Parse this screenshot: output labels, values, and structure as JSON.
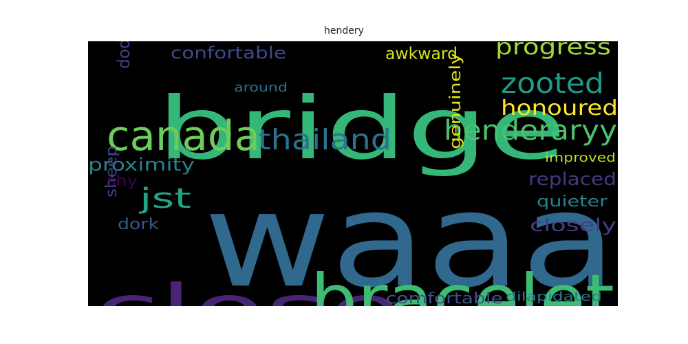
{
  "chart_data": {
    "type": "wordcloud",
    "title": "hendery",
    "background": "#000000",
    "words": [
      {
        "text": "waaa",
        "color": "#31688e"
      },
      {
        "text": "bridge",
        "color": "#35b779"
      },
      {
        "text": "close",
        "color": "#482475"
      },
      {
        "text": "bracelet",
        "color": "#3dbc74"
      },
      {
        "text": "canada",
        "color": "#6ccd5a"
      },
      {
        "text": "henderaryy",
        "color": "#4ac16d"
      },
      {
        "text": "thailand",
        "color": "#2c728e"
      },
      {
        "text": "zooted",
        "color": "#1f9a8a"
      },
      {
        "text": "progress",
        "color": "#a0da39"
      },
      {
        "text": "honoured",
        "color": "#fde725"
      },
      {
        "text": "jst",
        "color": "#21a585"
      },
      {
        "text": "awkward",
        "color": "#d5e21a"
      },
      {
        "text": "confortable",
        "color": "#3e4989"
      },
      {
        "text": "proximity",
        "color": "#26828e"
      },
      {
        "text": "replaced",
        "color": "#443983"
      },
      {
        "text": "closely",
        "color": "#433e85"
      },
      {
        "text": "genuinely",
        "color": "#e2e418"
      },
      {
        "text": "comfortable",
        "color": "#3b528b"
      },
      {
        "text": "dilapidated",
        "color": "#2a788e"
      },
      {
        "text": "improved",
        "color": "#b5de2b"
      },
      {
        "text": "quieter",
        "color": "#25848e"
      },
      {
        "text": "dork",
        "color": "#38588c"
      },
      {
        "text": "sheep",
        "color": "#414487"
      },
      {
        "text": "dodo",
        "color": "#424086"
      },
      {
        "text": "around",
        "color": "#2d708e"
      },
      {
        "text": "shy",
        "color": "#440154"
      }
    ]
  }
}
